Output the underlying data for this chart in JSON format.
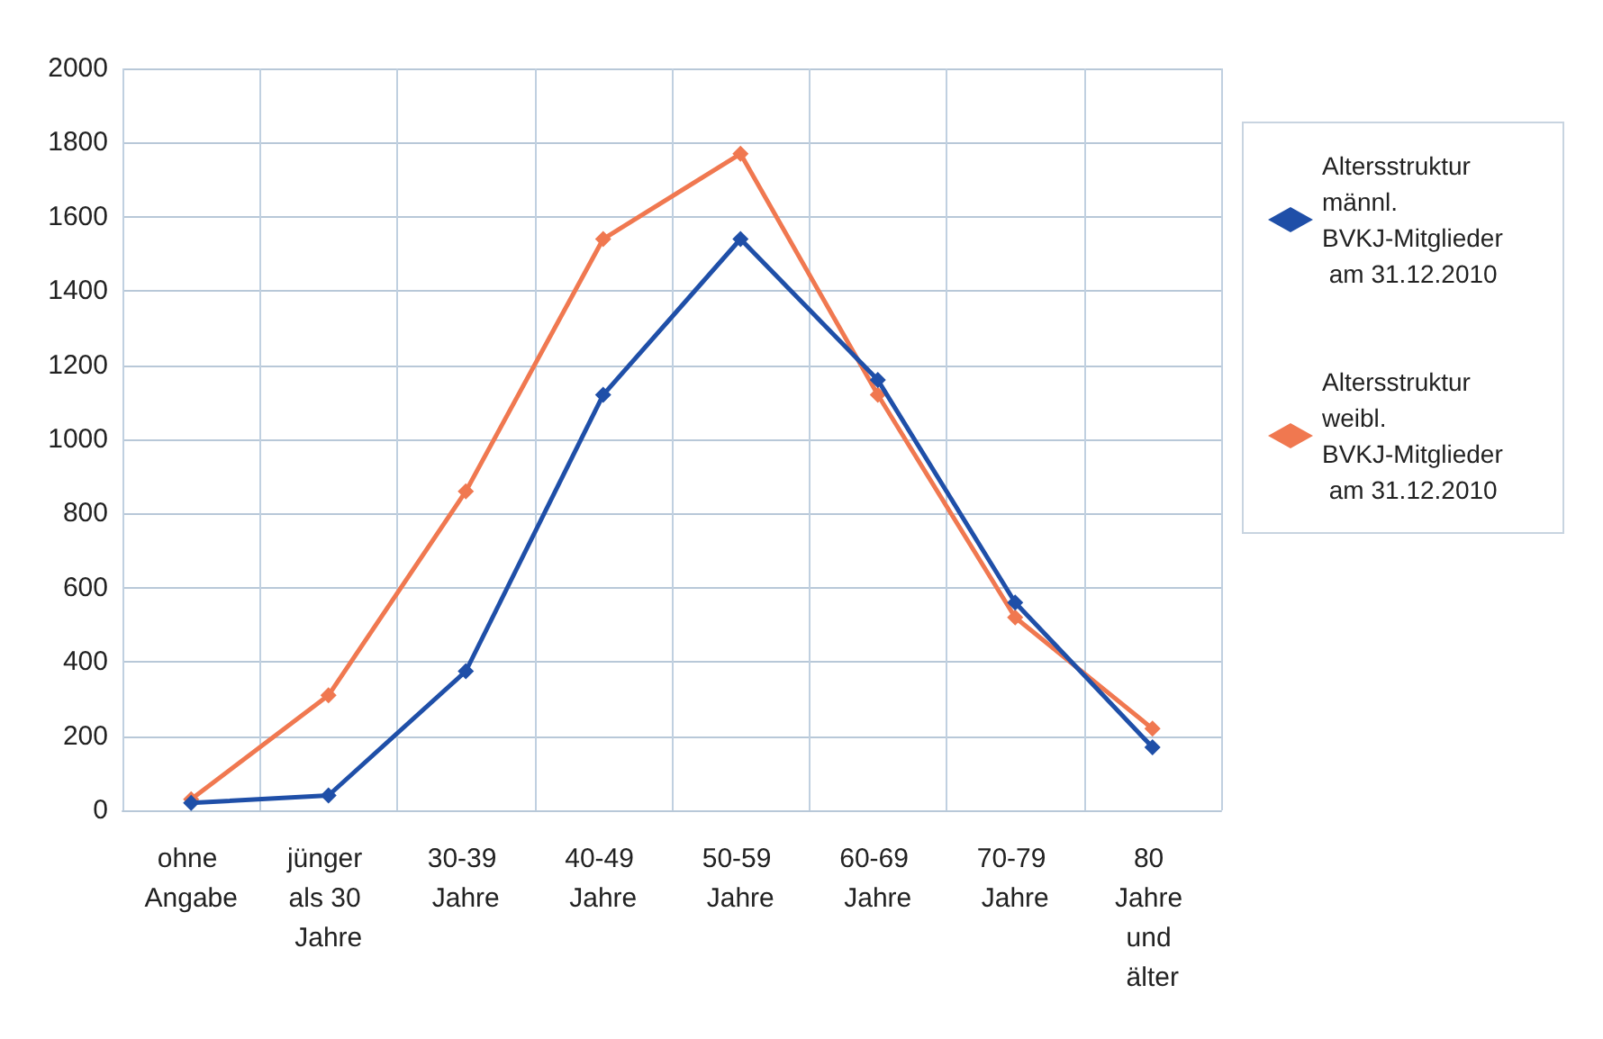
{
  "chart_data": {
    "type": "line",
    "categories": [
      "ohne Angabe",
      "jünger als 30 Jahre",
      "30-39 Jahre",
      "40-49 Jahre",
      "50-59 Jahre",
      "60-69 Jahre",
      "70-79 Jahre",
      "80 Jahre und älter"
    ],
    "series": [
      {
        "name": "Altersstruktur männl. BVKJ-Mitglieder am 31.12.2010",
        "color": "#1f4fa8",
        "values": [
          20,
          40,
          375,
          1120,
          1540,
          1160,
          560,
          170
        ]
      },
      {
        "name": "Altersstruktur weibl. BVKJ-Mitglieder am 31.12.2010",
        "color": "#f07850",
        "values": [
          30,
          310,
          860,
          1540,
          1770,
          1120,
          520,
          220
        ]
      }
    ],
    "ylim": [
      0,
      2000
    ],
    "yticks": [
      0,
      200,
      400,
      600,
      800,
      1000,
      1200,
      1400,
      1600,
      1800,
      2000
    ],
    "grid": true,
    "legend": "right",
    "marker": "diamond",
    "line_style": "solid"
  }
}
